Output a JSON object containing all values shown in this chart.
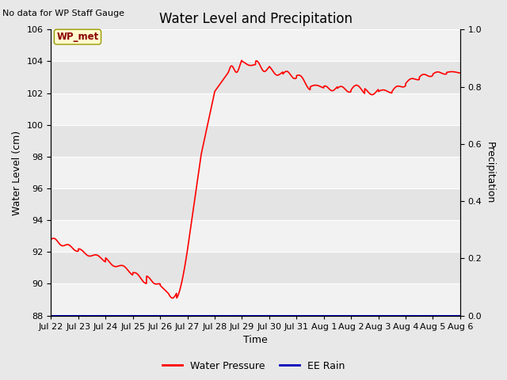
{
  "title": "Water Level and Precipitation",
  "top_left_text": "No data for WP Staff Gauge",
  "xlabel": "Time",
  "ylabel_left": "Water Level (cm)",
  "ylabel_right": "Precipitation",
  "ylim_left": [
    88,
    106
  ],
  "ylim_right": [
    0.0,
    1.0
  ],
  "yticks_left": [
    88,
    90,
    92,
    94,
    96,
    98,
    100,
    102,
    104,
    106
  ],
  "yticks_right": [
    0.0,
    0.2,
    0.4,
    0.6,
    0.8,
    1.0
  ],
  "xtick_labels": [
    "Jul 22",
    "Jul 23",
    "Jul 24",
    "Jul 25",
    "Jul 26",
    "Jul 27",
    "Jul 28",
    "Jul 29",
    "Jul 30",
    "Jul 31",
    "Aug 1",
    "Aug 2",
    "Aug 3",
    "Aug 4",
    "Aug 5",
    "Aug 6"
  ],
  "annotation_label": "WP_met",
  "line_color_water": "#FF0000",
  "line_color_rain": "#0000BB",
  "bg_color": "#E8E8E8",
  "plot_bg_light": "#F0F0F0",
  "plot_bg_dark": "#E0E0E0",
  "legend_labels": [
    "Water Pressure",
    "EE Rain"
  ],
  "legend_colors": [
    "#FF0000",
    "#0000BB"
  ],
  "title_fontsize": 12,
  "axis_fontsize": 9,
  "tick_fontsize": 8
}
